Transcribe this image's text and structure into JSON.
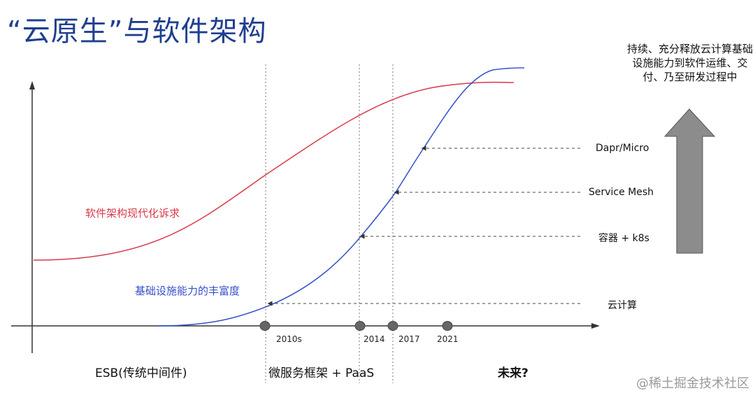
{
  "title": "“云原生”与软件架构",
  "curves": {
    "red_label": "软件架构现代化诉求",
    "blue_label": "基础设施能力的丰富度",
    "red_color": "#d83a4a",
    "blue_color": "#3550c8"
  },
  "milestones": [
    {
      "tick": "2010s",
      "label": "云计算"
    },
    {
      "tick": "2014",
      "label": "容器 + k8s"
    },
    {
      "tick": "2017",
      "label": "Service Mesh"
    },
    {
      "tick": "2021",
      "label": "Dapr/Micro"
    }
  ],
  "eras": [
    "ESB(传统中间件)",
    "微服务框架 + PaaS",
    "未来?"
  ],
  "side_note": "持续、充分释放云计算基础设施能力到软件运维、交付、乃至研发过程中",
  "arrow_color": "#8c8c8c",
  "watermark": "@稀土掘金技术社区"
}
